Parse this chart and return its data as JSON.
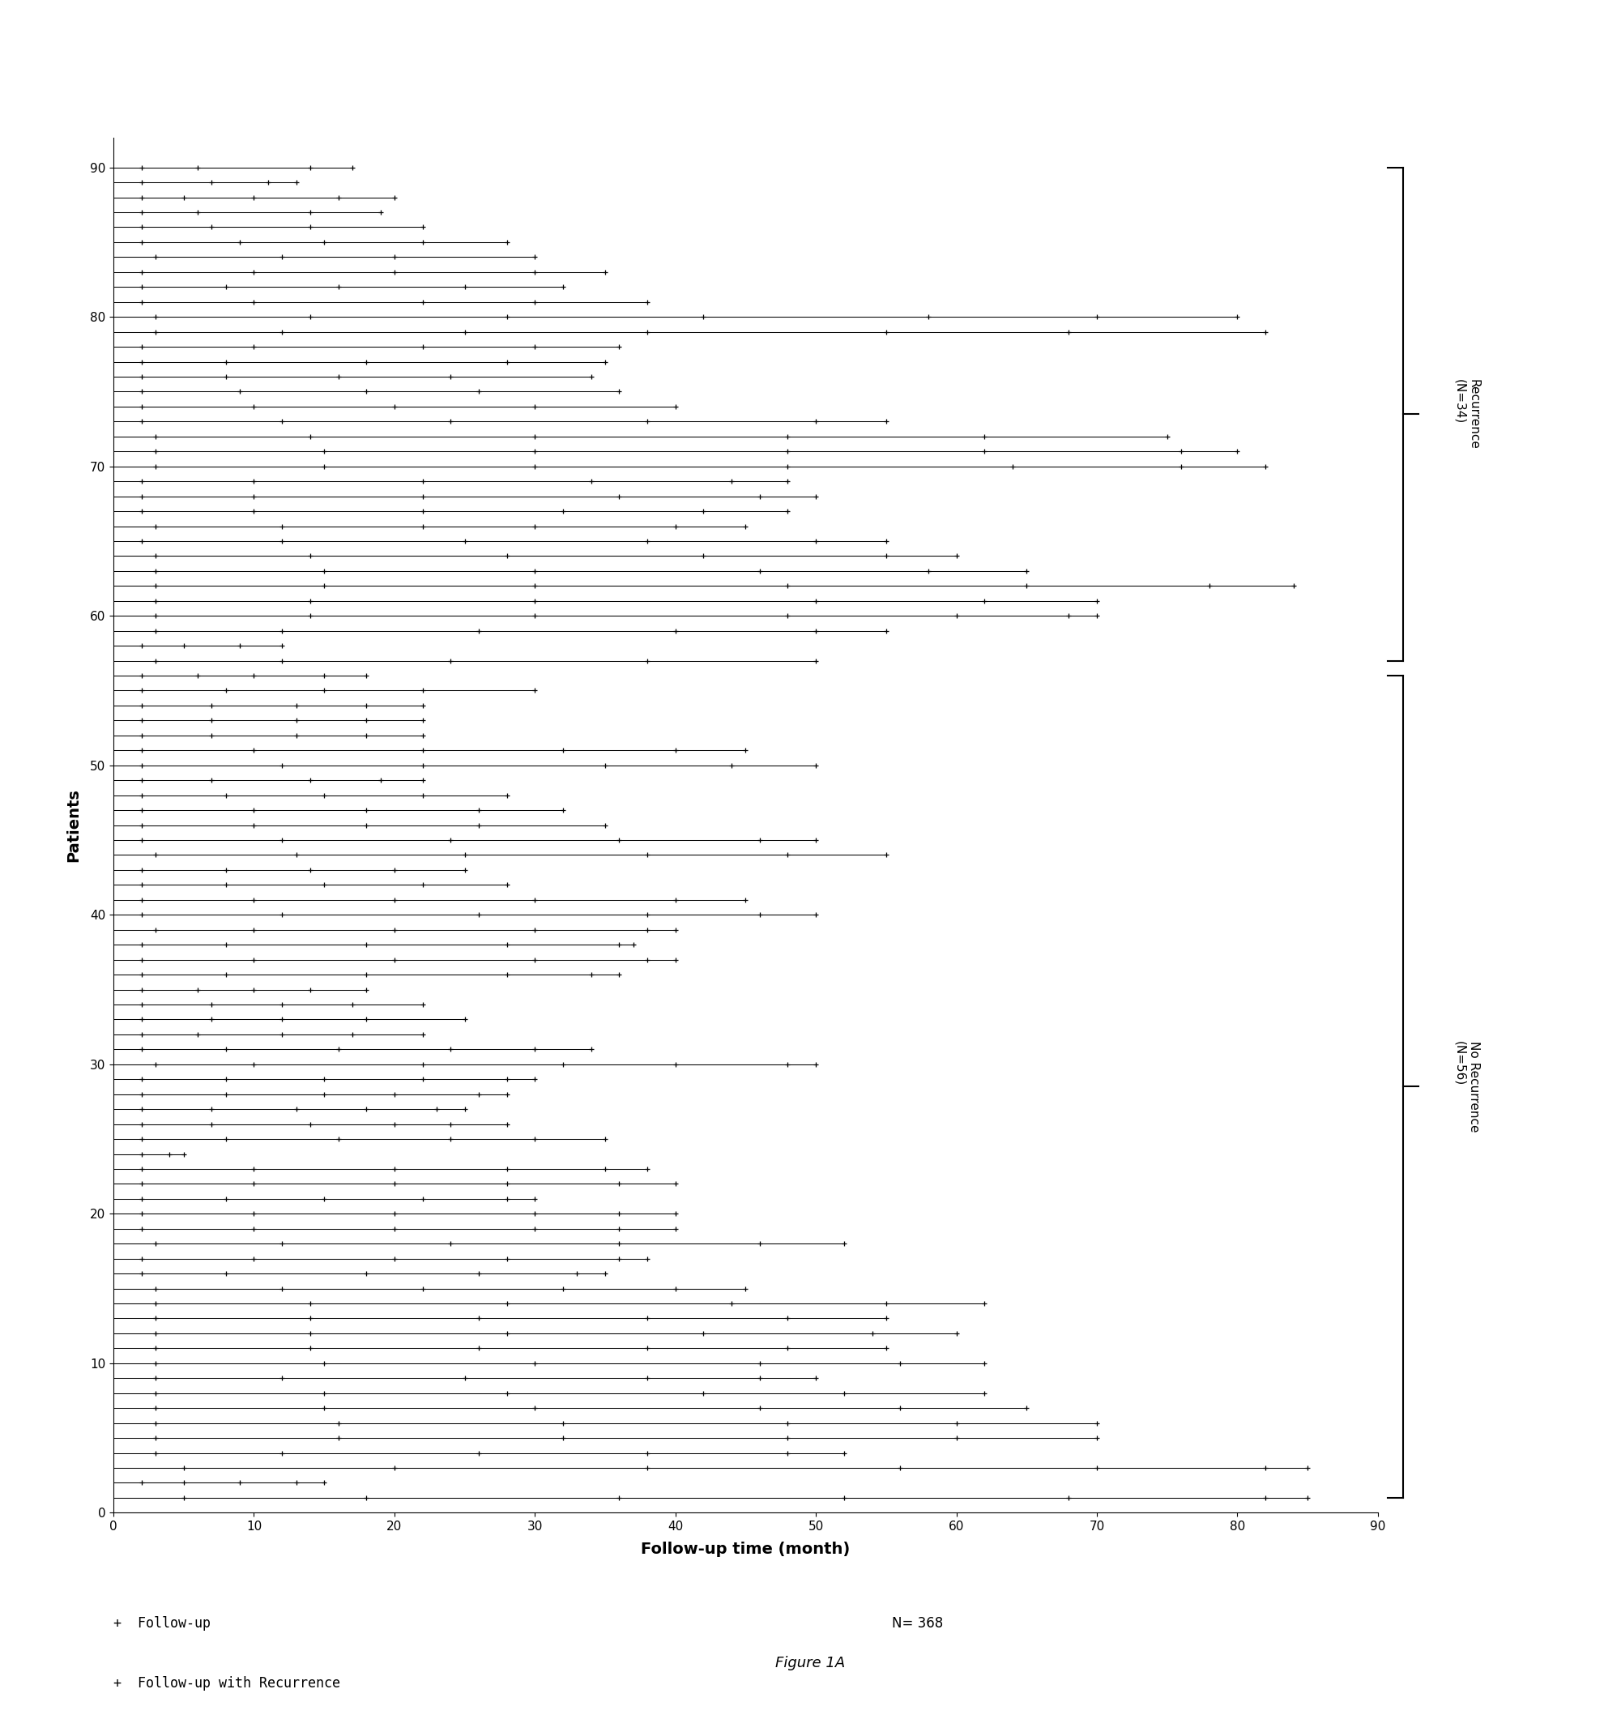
{
  "title": "Figure 1A",
  "xlabel": "Follow-up time (month)",
  "ylabel": "Patients",
  "xlim": [
    0,
    90
  ],
  "ylim": [
    0,
    92
  ],
  "xticks": [
    0,
    10,
    20,
    30,
    40,
    50,
    60,
    70,
    80,
    90
  ],
  "yticks": [
    0,
    10,
    20,
    30,
    40,
    50,
    60,
    70,
    80,
    90
  ],
  "recurrence_label": "Recurrence\n(N=34)",
  "no_recurrence_label": "No Recurrence\n(N=56)",
  "n_total": "N= 368",
  "legend_followup": "Follow-up",
  "legend_followup_recurrence": "Follow-up with Recurrence",
  "recurrence_y_low": 57,
  "recurrence_y_high": 90,
  "no_recurrence_y_low": 1,
  "no_recurrence_y_high": 56,
  "patient_data": [
    [
      90,
      [
        2,
        6,
        14,
        17
      ]
    ],
    [
      89,
      [
        2,
        7,
        11,
        13
      ]
    ],
    [
      88,
      [
        2,
        5,
        10,
        16,
        20
      ]
    ],
    [
      87,
      [
        2,
        6,
        14,
        19
      ]
    ],
    [
      86,
      [
        2,
        7,
        14,
        22
      ]
    ],
    [
      85,
      [
        2,
        9,
        15,
        22,
        28
      ]
    ],
    [
      84,
      [
        3,
        12,
        20,
        30
      ]
    ],
    [
      83,
      [
        2,
        10,
        20,
        30,
        35
      ]
    ],
    [
      82,
      [
        2,
        8,
        16,
        25,
        32
      ]
    ],
    [
      81,
      [
        2,
        10,
        22,
        30,
        38
      ]
    ],
    [
      80,
      [
        3,
        14,
        28,
        42,
        58,
        70,
        80
      ]
    ],
    [
      79,
      [
        3,
        12,
        25,
        38,
        55,
        68,
        82
      ]
    ],
    [
      78,
      [
        2,
        10,
        22,
        30,
        36
      ]
    ],
    [
      77,
      [
        2,
        8,
        18,
        28,
        35
      ]
    ],
    [
      76,
      [
        2,
        8,
        16,
        24,
        34
      ]
    ],
    [
      75,
      [
        2,
        9,
        18,
        26,
        36
      ]
    ],
    [
      74,
      [
        2,
        10,
        20,
        30,
        40
      ]
    ],
    [
      73,
      [
        2,
        12,
        24,
        38,
        50,
        55
      ]
    ],
    [
      72,
      [
        3,
        14,
        30,
        48,
        62,
        75
      ]
    ],
    [
      71,
      [
        3,
        15,
        30,
        48,
        62,
        76,
        80
      ]
    ],
    [
      70,
      [
        3,
        15,
        30,
        48,
        64,
        76,
        82
      ]
    ],
    [
      69,
      [
        2,
        10,
        22,
        34,
        44,
        48
      ]
    ],
    [
      68,
      [
        2,
        10,
        22,
        36,
        46,
        50
      ]
    ],
    [
      67,
      [
        2,
        10,
        22,
        32,
        42,
        48
      ]
    ],
    [
      66,
      [
        3,
        12,
        22,
        30,
        40,
        45
      ]
    ],
    [
      65,
      [
        2,
        12,
        25,
        38,
        50,
        55
      ]
    ],
    [
      64,
      [
        3,
        14,
        28,
        42,
        55,
        60
      ]
    ],
    [
      63,
      [
        3,
        15,
        30,
        46,
        58,
        65
      ]
    ],
    [
      62,
      [
        3,
        15,
        30,
        48,
        65,
        78,
        84
      ]
    ],
    [
      61,
      [
        3,
        14,
        30,
        50,
        62,
        70
      ]
    ],
    [
      60,
      [
        3,
        14,
        30,
        48,
        60,
        68,
        70
      ]
    ],
    [
      59,
      [
        3,
        12,
        26,
        40,
        50,
        55
      ]
    ],
    [
      58,
      [
        2,
        5,
        9,
        12
      ]
    ],
    [
      57,
      [
        3,
        12,
        24,
        38,
        50
      ]
    ],
    [
      56,
      [
        2,
        6,
        10,
        15,
        18
      ]
    ],
    [
      55,
      [
        2,
        8,
        15,
        22,
        30
      ]
    ],
    [
      54,
      [
        2,
        7,
        13,
        18,
        22
      ]
    ],
    [
      53,
      [
        2,
        7,
        13,
        18,
        22
      ]
    ],
    [
      52,
      [
        2,
        7,
        13,
        18,
        22
      ]
    ],
    [
      51,
      [
        2,
        10,
        22,
        32,
        40,
        45
      ]
    ],
    [
      50,
      [
        2,
        12,
        22,
        35,
        44,
        50
      ]
    ],
    [
      49,
      [
        2,
        7,
        14,
        19,
        22
      ]
    ],
    [
      48,
      [
        2,
        8,
        15,
        22,
        28
      ]
    ],
    [
      47,
      [
        2,
        10,
        18,
        26,
        32
      ]
    ],
    [
      46,
      [
        2,
        10,
        18,
        26,
        35
      ]
    ],
    [
      45,
      [
        2,
        12,
        24,
        36,
        46,
        50
      ]
    ],
    [
      44,
      [
        3,
        13,
        25,
        38,
        48,
        55
      ]
    ],
    [
      43,
      [
        2,
        8,
        14,
        20,
        25
      ]
    ],
    [
      42,
      [
        2,
        8,
        15,
        22,
        28
      ]
    ],
    [
      41,
      [
        2,
        10,
        20,
        30,
        40,
        45
      ]
    ],
    [
      40,
      [
        2,
        12,
        26,
        38,
        46,
        50
      ]
    ],
    [
      39,
      [
        3,
        10,
        20,
        30,
        38,
        40
      ]
    ],
    [
      38,
      [
        2,
        8,
        18,
        28,
        36,
        37
      ]
    ],
    [
      37,
      [
        2,
        10,
        20,
        30,
        38,
        40
      ]
    ],
    [
      36,
      [
        2,
        8,
        18,
        28,
        34,
        36
      ]
    ],
    [
      35,
      [
        2,
        6,
        10,
        14,
        18
      ]
    ],
    [
      34,
      [
        2,
        7,
        12,
        17,
        22
      ]
    ],
    [
      33,
      [
        2,
        7,
        12,
        18,
        25
      ]
    ],
    [
      32,
      [
        2,
        6,
        12,
        17,
        22
      ]
    ],
    [
      31,
      [
        2,
        8,
        16,
        24,
        30,
        34
      ]
    ],
    [
      30,
      [
        3,
        10,
        22,
        32,
        40,
        48,
        50
      ]
    ],
    [
      29,
      [
        2,
        8,
        15,
        22,
        28,
        30
      ]
    ],
    [
      28,
      [
        2,
        8,
        15,
        20,
        26,
        28
      ]
    ],
    [
      27,
      [
        2,
        7,
        13,
        18,
        23,
        25
      ]
    ],
    [
      26,
      [
        2,
        7,
        14,
        20,
        24,
        28
      ]
    ],
    [
      25,
      [
        2,
        8,
        16,
        24,
        30,
        35
      ]
    ],
    [
      24,
      [
        2,
        4,
        5
      ]
    ],
    [
      23,
      [
        2,
        10,
        20,
        28,
        35,
        38
      ]
    ],
    [
      22,
      [
        2,
        10,
        20,
        28,
        36,
        40
      ]
    ],
    [
      21,
      [
        2,
        8,
        15,
        22,
        28,
        30
      ]
    ],
    [
      20,
      [
        2,
        10,
        20,
        30,
        36,
        40
      ]
    ],
    [
      19,
      [
        2,
        10,
        20,
        30,
        36,
        40
      ]
    ],
    [
      18,
      [
        3,
        12,
        24,
        36,
        46,
        52
      ]
    ],
    [
      17,
      [
        2,
        10,
        20,
        28,
        36,
        38
      ]
    ],
    [
      16,
      [
        2,
        8,
        18,
        26,
        33,
        35
      ]
    ],
    [
      15,
      [
        3,
        12,
        22,
        32,
        40,
        45
      ]
    ],
    [
      14,
      [
        3,
        14,
        28,
        44,
        55,
        62
      ]
    ],
    [
      13,
      [
        3,
        14,
        26,
        38,
        48,
        55
      ]
    ],
    [
      12,
      [
        3,
        14,
        28,
        42,
        54,
        60
      ]
    ],
    [
      11,
      [
        3,
        14,
        26,
        38,
        48,
        55
      ]
    ],
    [
      10,
      [
        3,
        15,
        30,
        46,
        56,
        62
      ]
    ],
    [
      9,
      [
        3,
        12,
        25,
        38,
        46,
        50
      ]
    ],
    [
      8,
      [
        3,
        15,
        28,
        42,
        52,
        62
      ]
    ],
    [
      7,
      [
        3,
        15,
        30,
        46,
        56,
        65
      ]
    ],
    [
      6,
      [
        3,
        16,
        32,
        48,
        60,
        70
      ]
    ],
    [
      5,
      [
        3,
        16,
        32,
        48,
        60,
        70
      ]
    ],
    [
      4,
      [
        3,
        12,
        26,
        38,
        48,
        52
      ]
    ],
    [
      3,
      [
        5,
        20,
        38,
        56,
        70,
        82,
        85
      ]
    ],
    [
      2,
      [
        2,
        5,
        9,
        13,
        15
      ]
    ],
    [
      1,
      [
        5,
        18,
        36,
        52,
        68,
        82,
        85
      ]
    ]
  ]
}
